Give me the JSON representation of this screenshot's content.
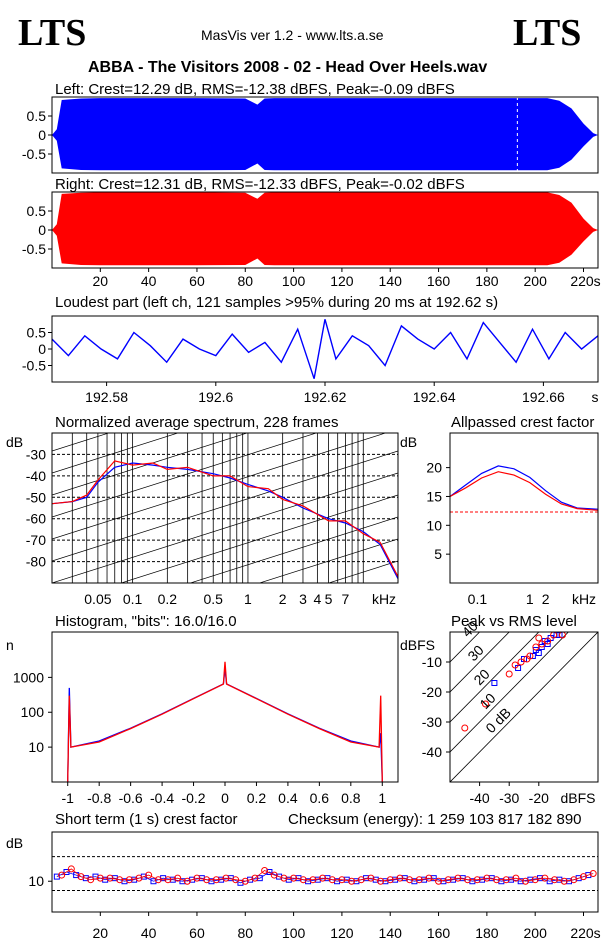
{
  "header": {
    "logo_left": "LTS",
    "logo_right": "LTS",
    "app": "MasVis ver 1.2 - www.lts.a.se",
    "file_title": "ABBA - The Visitors  2008 - 02 - Head Over Heels.wav"
  },
  "colors": {
    "left": "#0000ff",
    "right": "#ff0000",
    "axis": "#000000"
  },
  "chart_data": [
    {
      "id": "left_wave",
      "type": "area",
      "title": "Left: Crest=12.29 dB, RMS=-12.38 dBFS, Peak=-0.09 dBFS",
      "ylim": [
        -1,
        1
      ],
      "yticks": [
        "0.5",
        "0",
        "-0.5"
      ],
      "xlim": [
        0,
        226
      ],
      "series": [
        {
          "name": "",
          "x": [
            0,
            2,
            4,
            12,
            20,
            40,
            60,
            80,
            85,
            88,
            92,
            120,
            150,
            170,
            190,
            205,
            210,
            215,
            220,
            224,
            226
          ],
          "ymax": [
            0,
            0.15,
            0.92,
            0.96,
            0.97,
            0.97,
            0.97,
            0.96,
            0.8,
            0.96,
            0.97,
            0.97,
            0.97,
            0.97,
            0.97,
            0.97,
            0.9,
            0.7,
            0.3,
            0.05,
            0
          ],
          "ymin": [
            0,
            -0.15,
            -0.88,
            -0.92,
            -0.93,
            -0.93,
            -0.93,
            -0.92,
            -0.75,
            -0.92,
            -0.93,
            -0.93,
            -0.93,
            -0.93,
            -0.93,
            -0.93,
            -0.86,
            -0.65,
            -0.3,
            -0.05,
            0
          ]
        }
      ],
      "marker_x": 192.62
    },
    {
      "id": "right_wave",
      "type": "area",
      "title": "Right: Crest=12.31 dB, RMS=-12.33 dBFS, Peak=-0.02 dBFS",
      "ylim": [
        -1,
        1
      ],
      "yticks": [
        "0.5",
        "0",
        "-0.5"
      ],
      "xlim": [
        0,
        226
      ],
      "xticks": [
        "20",
        "40",
        "60",
        "80",
        "100",
        "120",
        "140",
        "160",
        "180",
        "200",
        "220s"
      ],
      "series": [
        {
          "name": "",
          "x": [
            0,
            2,
            4,
            12,
            20,
            40,
            60,
            80,
            85,
            88,
            92,
            120,
            150,
            170,
            190,
            205,
            210,
            215,
            220,
            224,
            226
          ],
          "ymax": [
            0,
            0.15,
            0.95,
            0.98,
            0.99,
            0.99,
            0.99,
            0.98,
            0.82,
            0.98,
            0.99,
            0.99,
            0.99,
            0.99,
            0.99,
            0.99,
            0.92,
            0.72,
            0.3,
            0.05,
            0
          ],
          "ymin": [
            0,
            -0.15,
            -0.88,
            -0.92,
            -0.93,
            -0.93,
            -0.93,
            -0.92,
            -0.75,
            -0.92,
            -0.93,
            -0.93,
            -0.93,
            -0.93,
            -0.93,
            -0.93,
            -0.86,
            -0.65,
            -0.3,
            -0.05,
            0
          ]
        }
      ]
    },
    {
      "id": "loudest",
      "type": "line",
      "title": "Loudest part (left  ch, 121 samples >95% during 20 ms at 192.62 s)",
      "xlim": [
        192.57,
        192.67
      ],
      "ylim": [
        -1,
        1
      ],
      "yticks": [
        "0.5",
        "0",
        "-0.5"
      ],
      "xticks": [
        "192.58",
        "192.6",
        "192.62",
        "192.64",
        "192.66",
        "s"
      ],
      "series": [
        {
          "name": "",
          "x": [
            192.57,
            192.573,
            192.576,
            192.579,
            192.582,
            192.585,
            192.588,
            192.591,
            192.594,
            192.597,
            192.6,
            192.603,
            192.606,
            192.609,
            192.612,
            192.615,
            192.618,
            192.62,
            192.622,
            192.625,
            192.628,
            192.631,
            192.634,
            192.637,
            192.64,
            192.643,
            192.646,
            192.649,
            192.652,
            192.655,
            192.658,
            192.661,
            192.664,
            192.667,
            192.67
          ],
          "y": [
            0.3,
            -0.2,
            0.4,
            0.0,
            -0.3,
            0.5,
            0.1,
            -0.4,
            0.3,
            0.0,
            -0.2,
            0.45,
            -0.1,
            0.2,
            -0.4,
            0.6,
            -0.9,
            0.9,
            -0.3,
            0.4,
            0.1,
            -0.5,
            0.7,
            0.3,
            0.0,
            0.5,
            -0.3,
            0.8,
            0.2,
            -0.4,
            0.6,
            -0.3,
            0.5,
            0.0,
            0.4
          ]
        }
      ]
    },
    {
      "id": "spectrum",
      "type": "line",
      "title": "Normalized average spectrum, 228 frames",
      "ylabel": "dB",
      "xscale": "log",
      "xlim": [
        0.02,
        20
      ],
      "ylim": [
        -90,
        -20
      ],
      "yticks": [
        -30,
        -40,
        -50,
        -60,
        -70,
        -80
      ],
      "xticks": [
        "0.05",
        "0.1",
        "0.2",
        "0.5",
        "1",
        "2",
        "3",
        "4",
        "5",
        "7",
        "kHz"
      ],
      "xtick_values": [
        0.05,
        0.1,
        0.2,
        0.5,
        1,
        2,
        3,
        4,
        5,
        7
      ],
      "series": [
        {
          "name": "",
          "color": "left",
          "x": [
            0.02,
            0.03,
            0.04,
            0.05,
            0.07,
            0.1,
            0.15,
            0.2,
            0.3,
            0.5,
            0.7,
            1,
            1.5,
            2,
            3,
            5,
            7,
            10,
            14,
            20
          ],
          "y": [
            -53,
            -52,
            -50,
            -43,
            -36,
            -34,
            -35,
            -36,
            -37,
            -39,
            -41,
            -44,
            -47,
            -50,
            -55,
            -60,
            -62,
            -66,
            -72,
            -88
          ]
        },
        {
          "name": "",
          "color": "right",
          "x": [
            0.02,
            0.03,
            0.04,
            0.05,
            0.07,
            0.1,
            0.15,
            0.2,
            0.3,
            0.5,
            0.7,
            1,
            1.5,
            2,
            3,
            5,
            7,
            10,
            14,
            20
          ],
          "y": [
            -53,
            -52,
            -49,
            -42,
            -33,
            -35,
            -34,
            -37,
            -36,
            -40,
            -40,
            -45,
            -46,
            -51,
            -54,
            -61,
            -61,
            -67,
            -71,
            -87
          ]
        }
      ]
    },
    {
      "id": "allpassed",
      "type": "line",
      "title": "Allpassed crest factor",
      "ylabel": "dB",
      "xscale": "log",
      "xlim": [
        0.03,
        20
      ],
      "ylim": [
        0,
        26
      ],
      "yticks": [
        20,
        15,
        10,
        5
      ],
      "xticks": [
        "0.1",
        "1",
        "2",
        "kHz"
      ],
      "xtick_values": [
        0.1,
        1,
        2
      ],
      "reference_y": 12.3,
      "series": [
        {
          "name": "",
          "color": "left",
          "x": [
            0.03,
            0.06,
            0.12,
            0.25,
            0.5,
            1,
            2,
            4,
            8,
            20
          ],
          "y": [
            15,
            17,
            19,
            20.3,
            19.8,
            18.3,
            16,
            14,
            13,
            12.8
          ]
        },
        {
          "name": "",
          "color": "right",
          "x": [
            0.03,
            0.06,
            0.12,
            0.25,
            0.5,
            1,
            2,
            4,
            8,
            20
          ],
          "y": [
            15,
            16.5,
            18.2,
            19.3,
            18.7,
            17.4,
            15.4,
            13.7,
            12.9,
            12.6
          ]
        }
      ]
    },
    {
      "id": "histogram",
      "type": "line",
      "title": "Histogram, \"bits\": 16.0/16.0",
      "ylabel": "n",
      "yscale": "log",
      "xlim": [
        -1.1,
        1.1
      ],
      "ylim": [
        1,
        20000
      ],
      "yticks": [
        "1000",
        "100",
        "10"
      ],
      "ytick_values": [
        1000,
        100,
        10
      ],
      "xticks": [
        "-1",
        "-0.8",
        "-0.6",
        "-0.4",
        "-0.2",
        "0",
        "0.2",
        "0.4",
        "0.6",
        "0.8",
        "1"
      ],
      "series": [
        {
          "name": "",
          "color": "left",
          "x": [
            -1.0,
            -0.99,
            -0.98,
            -0.8,
            -0.6,
            -0.4,
            -0.2,
            -0.01,
            0,
            0.01,
            0.2,
            0.4,
            0.6,
            0.8,
            0.98,
            0.99,
            1.0
          ],
          "y": [
            1,
            500,
            10,
            15,
            35,
            90,
            250,
            650,
            1800,
            650,
            250,
            90,
            35,
            15,
            10,
            25,
            1
          ]
        },
        {
          "name": "",
          "color": "right",
          "x": [
            -1.0,
            -0.99,
            -0.98,
            -0.8,
            -0.6,
            -0.4,
            -0.2,
            -0.01,
            0,
            0.01,
            0.2,
            0.4,
            0.6,
            0.8,
            0.98,
            0.99,
            1.0
          ],
          "y": [
            1,
            300,
            10,
            14,
            34,
            88,
            245,
            640,
            2800,
            640,
            245,
            88,
            34,
            14,
            10,
            300,
            1
          ]
        }
      ]
    },
    {
      "id": "peak_rms",
      "type": "scatter",
      "title": "Peak vs RMS level",
      "ylabel": "dBFS",
      "xlabel": "dBFS",
      "xlim": [
        -50,
        0
      ],
      "ylim": [
        -50,
        0
      ],
      "yticks": [
        -10,
        -20,
        -30,
        -40
      ],
      "xticks": [
        "-40",
        "-30",
        "-20"
      ],
      "xtick_values": [
        -40,
        -30,
        -20
      ],
      "diagonal_labels": [
        "40",
        "30",
        "20",
        "10",
        "0 dB"
      ],
      "series": [
        {
          "name": "",
          "color": "left",
          "points": [
            [
              -35,
              -17
            ],
            [
              -27,
              -12
            ],
            [
              -25,
              -9
            ],
            [
              -22,
              -8
            ],
            [
              -20,
              -7
            ],
            [
              -19,
              -5
            ],
            [
              -18,
              -3
            ],
            [
              -16,
              -2
            ],
            [
              -14,
              -1
            ],
            [
              -13,
              -1
            ],
            [
              -17,
              -4
            ],
            [
              -21,
              -6
            ]
          ]
        },
        {
          "name": "",
          "color": "right",
          "points": [
            [
              -45,
              -32
            ],
            [
              -38,
              -24
            ],
            [
              -30,
              -14
            ],
            [
              -26,
              -10
            ],
            [
              -23,
              -8
            ],
            [
              -21,
              -5
            ],
            [
              -19,
              -4
            ],
            [
              -17,
              -3
            ],
            [
              -15,
              -1
            ],
            [
              -12,
              -1
            ],
            [
              -20,
              -2
            ],
            [
              -24,
              -9
            ],
            [
              -28,
              -11
            ]
          ]
        }
      ]
    },
    {
      "id": "short_crest",
      "type": "scatter",
      "title": "Short term (1 s) crest factor",
      "ylabel": "dB",
      "xlim": [
        0,
        226
      ],
      "ylim": [
        0,
        26
      ],
      "yticks": [
        "10"
      ],
      "ytick_values": [
        10
      ],
      "xticks": [
        "20",
        "40",
        "60",
        "80",
        "100",
        "120",
        "140",
        "160",
        "180",
        "200",
        "220s"
      ],
      "reference_lines": [
        18,
        7
      ],
      "series": [
        {
          "name": "",
          "color": "left",
          "x": [
            2,
            6,
            10,
            14,
            18,
            22,
            26,
            30,
            34,
            38,
            42,
            46,
            50,
            54,
            58,
            62,
            66,
            70,
            74,
            78,
            82,
            86,
            90,
            94,
            98,
            102,
            106,
            110,
            114,
            118,
            122,
            126,
            130,
            134,
            138,
            142,
            146,
            150,
            154,
            158,
            162,
            166,
            170,
            174,
            178,
            182,
            186,
            190,
            194,
            198,
            202,
            206,
            210,
            214,
            218,
            222
          ],
          "y": [
            11.5,
            13,
            12,
            11,
            11.5,
            10.5,
            11,
            10,
            10.5,
            11.5,
            10,
            11,
            10.5,
            10,
            10.5,
            11,
            10,
            10.5,
            11,
            9.5,
            10.5,
            11,
            13,
            11.5,
            10.5,
            11,
            10,
            10.5,
            11,
            10,
            10.5,
            10,
            11,
            10.5,
            10,
            10.5,
            11,
            10,
            10.5,
            11,
            10,
            10.5,
            11,
            10,
            10.5,
            11,
            10,
            10.5,
            10,
            10.5,
            11,
            10,
            10.5,
            10,
            11,
            12
          ]
        },
        {
          "name": "",
          "color": "right",
          "x": [
            4,
            8,
            12,
            16,
            20,
            24,
            28,
            32,
            36,
            40,
            44,
            48,
            52,
            56,
            60,
            64,
            68,
            72,
            76,
            80,
            84,
            88,
            92,
            96,
            100,
            104,
            108,
            112,
            116,
            120,
            124,
            128,
            132,
            136,
            140,
            144,
            148,
            152,
            156,
            160,
            164,
            168,
            172,
            176,
            180,
            184,
            188,
            192,
            196,
            200,
            204,
            208,
            212,
            216,
            220,
            224
          ],
          "y": [
            12,
            14,
            11.5,
            10.5,
            11,
            11,
            10.5,
            10.5,
            11,
            12,
            10.5,
            10.5,
            11,
            10,
            11,
            10.5,
            10.5,
            11,
            10.5,
            10,
            11,
            13.5,
            12,
            11,
            11,
            10.5,
            10.5,
            11,
            10.5,
            10.5,
            10,
            10.5,
            11,
            10,
            10.5,
            11,
            10.5,
            10.5,
            11,
            10,
            10.5,
            11,
            10.5,
            10.5,
            11,
            10.5,
            10.5,
            11,
            10,
            10.5,
            11,
            10.5,
            10,
            10.5,
            11.5,
            12.5
          ]
        }
      ],
      "checksum": "Checksum (energy):  1 259 103 817 182 890"
    }
  ]
}
